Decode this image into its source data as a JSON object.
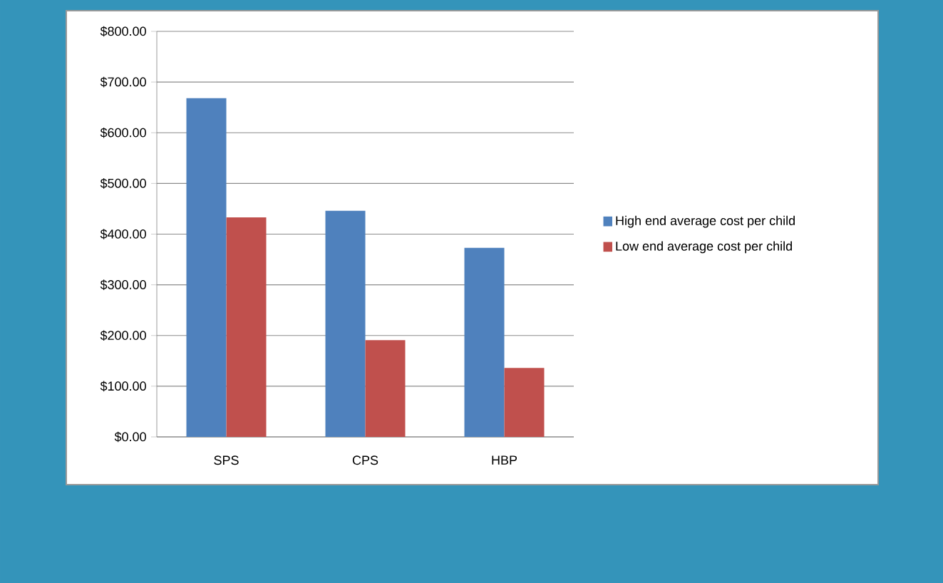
{
  "chart_data": {
    "type": "bar",
    "categories": [
      "SPS",
      "CPS",
      "HBP"
    ],
    "series": [
      {
        "name": "High end average cost per child",
        "color": "#4f81bd",
        "values": [
          668,
          446,
          373
        ]
      },
      {
        "name": "Low end average cost per child",
        "color": "#c0504d",
        "values": [
          433,
          191,
          136
        ]
      }
    ],
    "ylim": [
      0,
      800
    ],
    "yticks": [
      {
        "value": 0,
        "label": "$0.00"
      },
      {
        "value": 100,
        "label": "$100.00"
      },
      {
        "value": 200,
        "label": "$200.00"
      },
      {
        "value": 300,
        "label": "$300.00"
      },
      {
        "value": 400,
        "label": "$400.00"
      },
      {
        "value": 500,
        "label": "$500.00"
      },
      {
        "value": 600,
        "label": "$600.00"
      },
      {
        "value": 700,
        "label": "$700.00"
      },
      {
        "value": 800,
        "label": "$800.00"
      }
    ],
    "grid": "y",
    "legend": "right"
  }
}
